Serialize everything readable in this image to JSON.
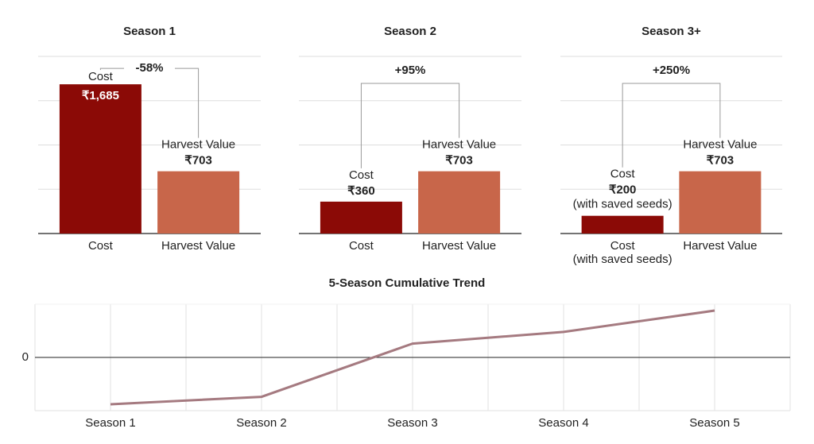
{
  "chart_data": [
    {
      "type": "bar",
      "title": "Season 1",
      "categories": [
        "Cost",
        "Harvest Value"
      ],
      "values": [
        1685,
        703
      ],
      "value_labels": [
        "₹1,685",
        "₹703"
      ],
      "colors": [
        "#8b0a06",
        "#c8664a"
      ],
      "ylim": [
        0,
        2000
      ],
      "gridlines": [
        0,
        500,
        1000,
        1500,
        2000
      ],
      "change_label": "-58%"
    },
    {
      "type": "bar",
      "title": "Season 2",
      "categories": [
        "Cost",
        "Harvest Value"
      ],
      "values": [
        360,
        703
      ],
      "value_labels": [
        "₹360",
        "₹703"
      ],
      "colors": [
        "#8b0a06",
        "#c8664a"
      ],
      "ylim": [
        0,
        2000
      ],
      "gridlines": [
        0,
        500,
        1000,
        1500,
        2000
      ],
      "change_label": "+95%"
    },
    {
      "type": "bar",
      "title": "Season 3+",
      "categories": [
        "Cost",
        "Harvest Value"
      ],
      "values": [
        200,
        703
      ],
      "value_labels": [
        "₹200",
        "₹703"
      ],
      "colors": [
        "#8b0a06",
        "#c8664a"
      ],
      "ylim": [
        0,
        2000
      ],
      "gridlines": [
        0,
        500,
        1000,
        1500,
        2000
      ],
      "change_label": "+250%",
      "cost_note": "(with saved seeds)"
    },
    {
      "type": "line",
      "title": "5-Season Cumulative Trend",
      "categories": [
        "Season 1",
        "Season 2",
        "Season 3",
        "Season 4",
        "Season 5"
      ],
      "values": [
        -880,
        -740,
        260,
        480,
        880
      ],
      "color": "#a57a80",
      "ylim": [
        -1000,
        1000
      ],
      "yticks": [
        0
      ]
    }
  ]
}
